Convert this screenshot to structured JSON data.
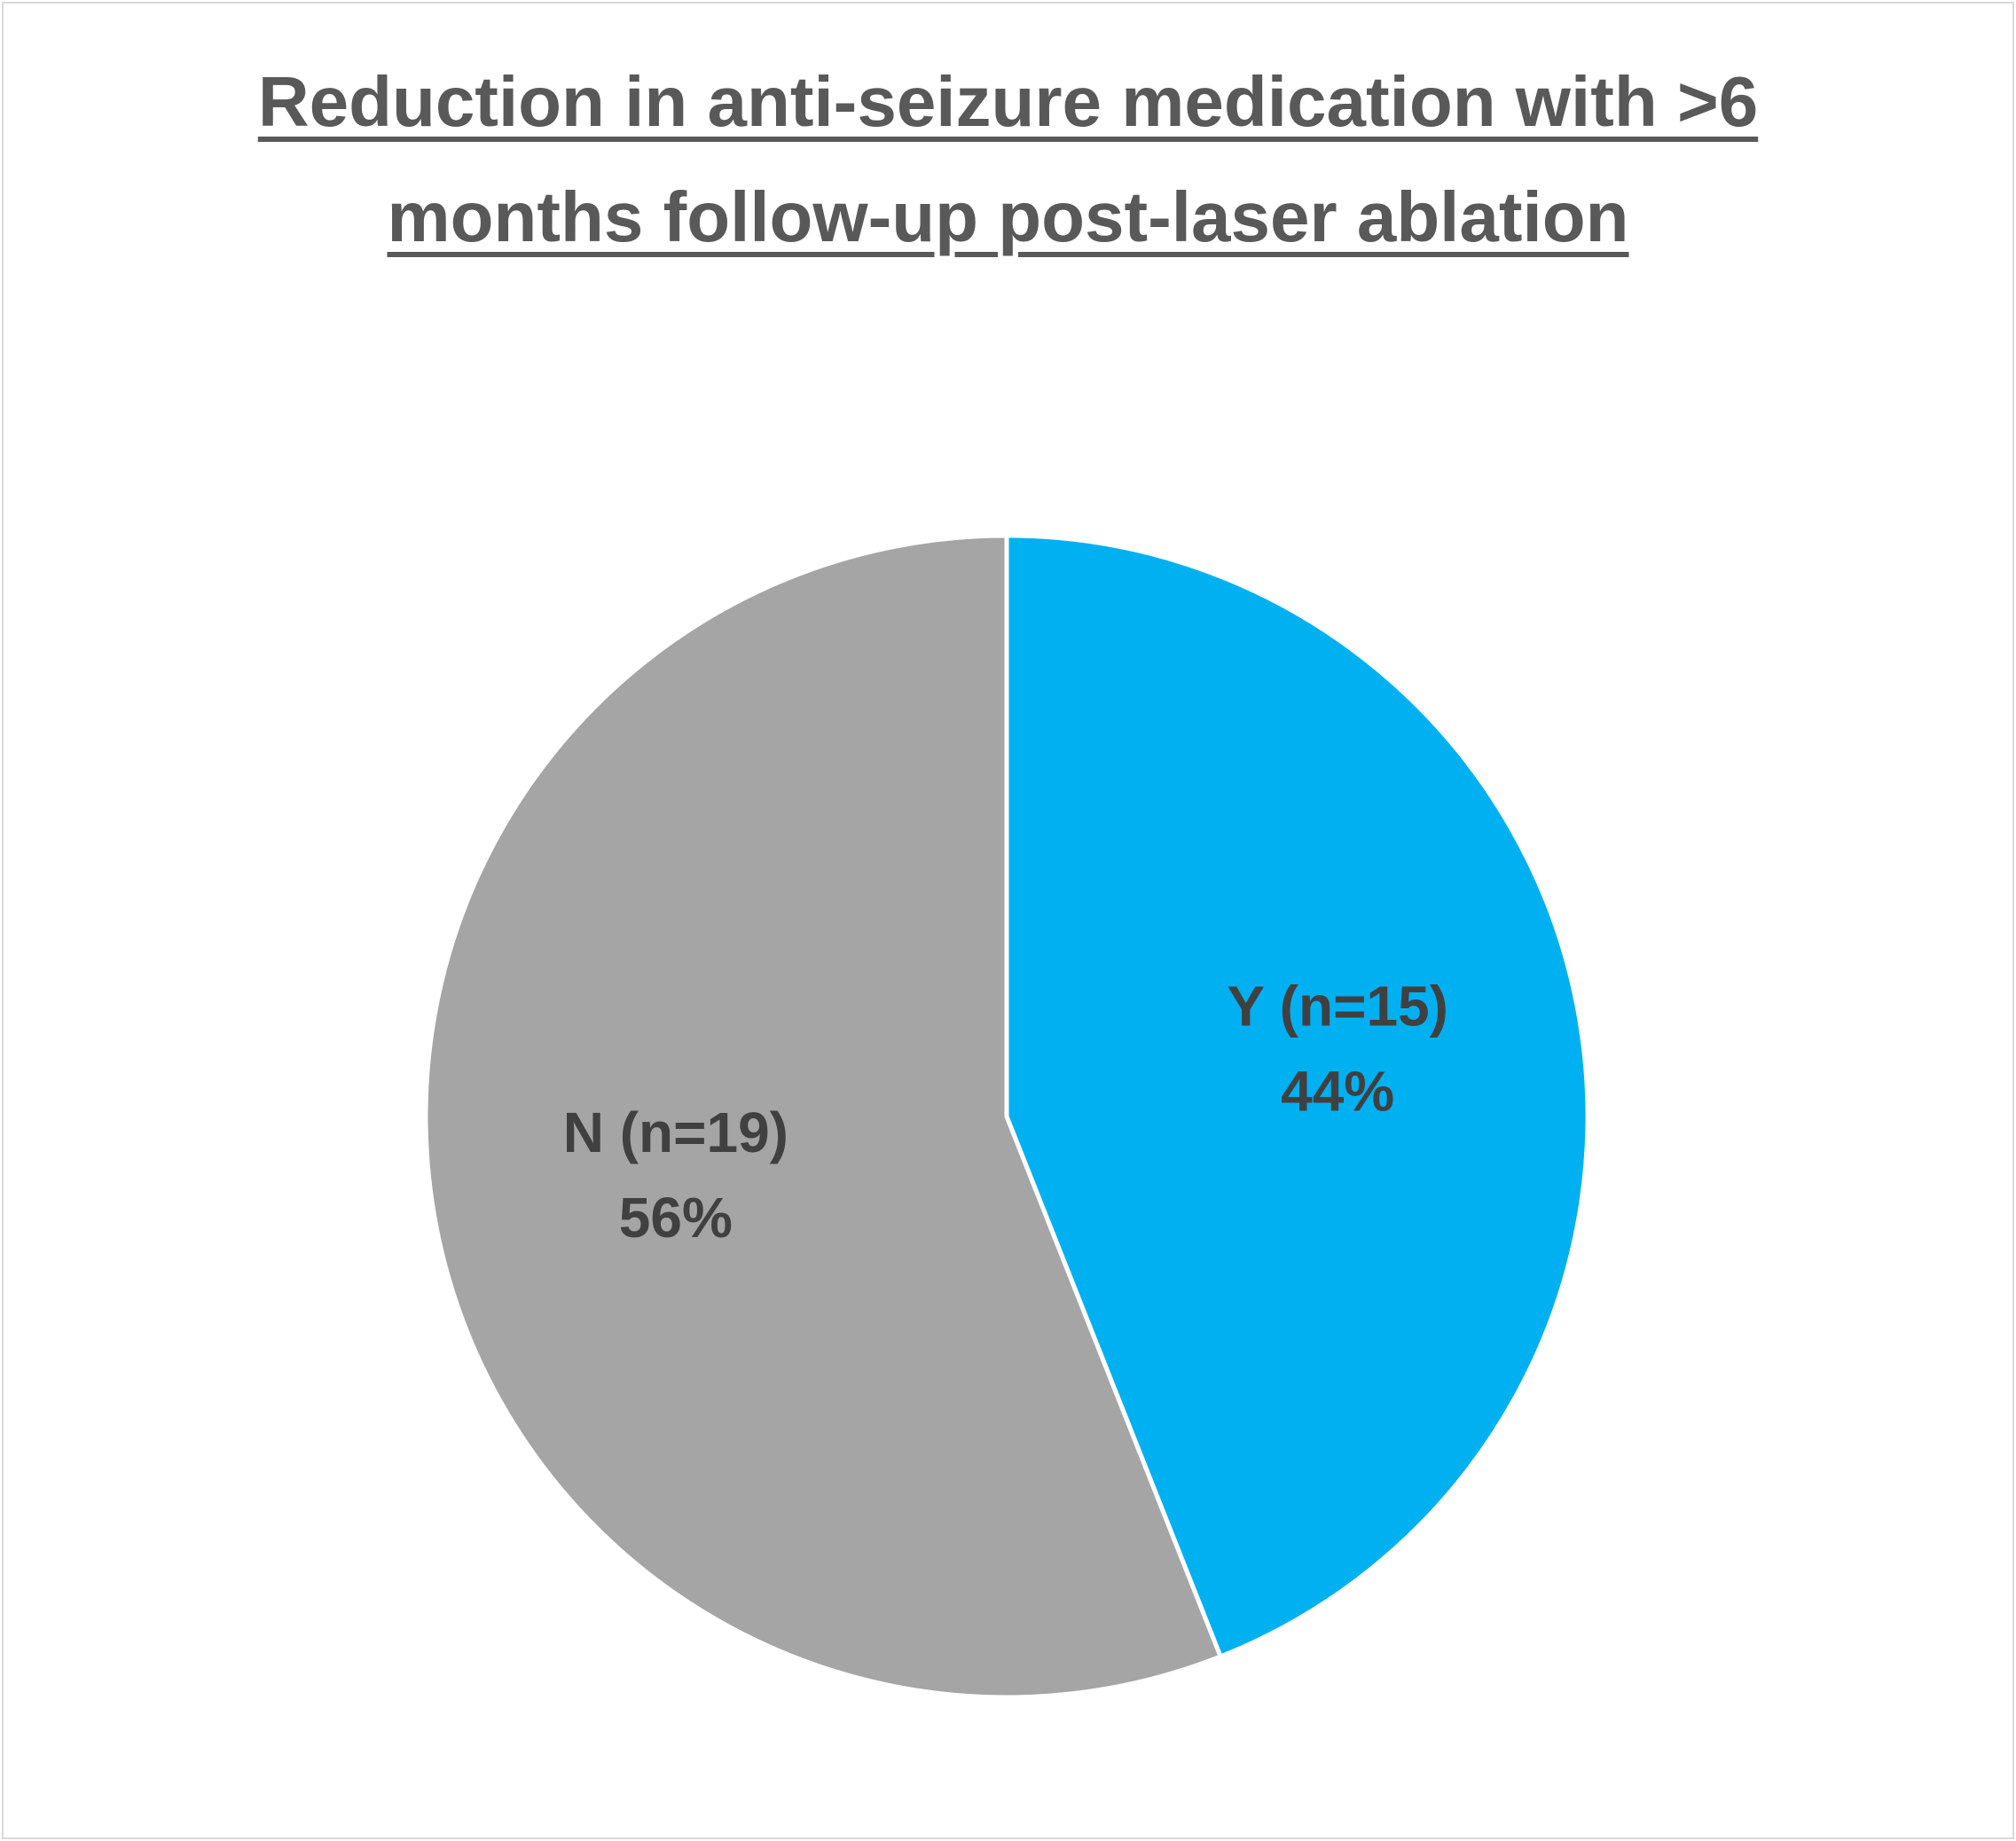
{
  "chart_data": {
    "type": "pie",
    "title": "Reduction in anti-seizure medication with >6 months follow-up post-laser ablation",
    "categories": [
      "Y (n=15)",
      "N (n=19)"
    ],
    "values": [
      44,
      56
    ],
    "value_labels": [
      "44%",
      "56%"
    ],
    "colors": [
      "#00B0F0",
      "#A5A5A5"
    ]
  }
}
